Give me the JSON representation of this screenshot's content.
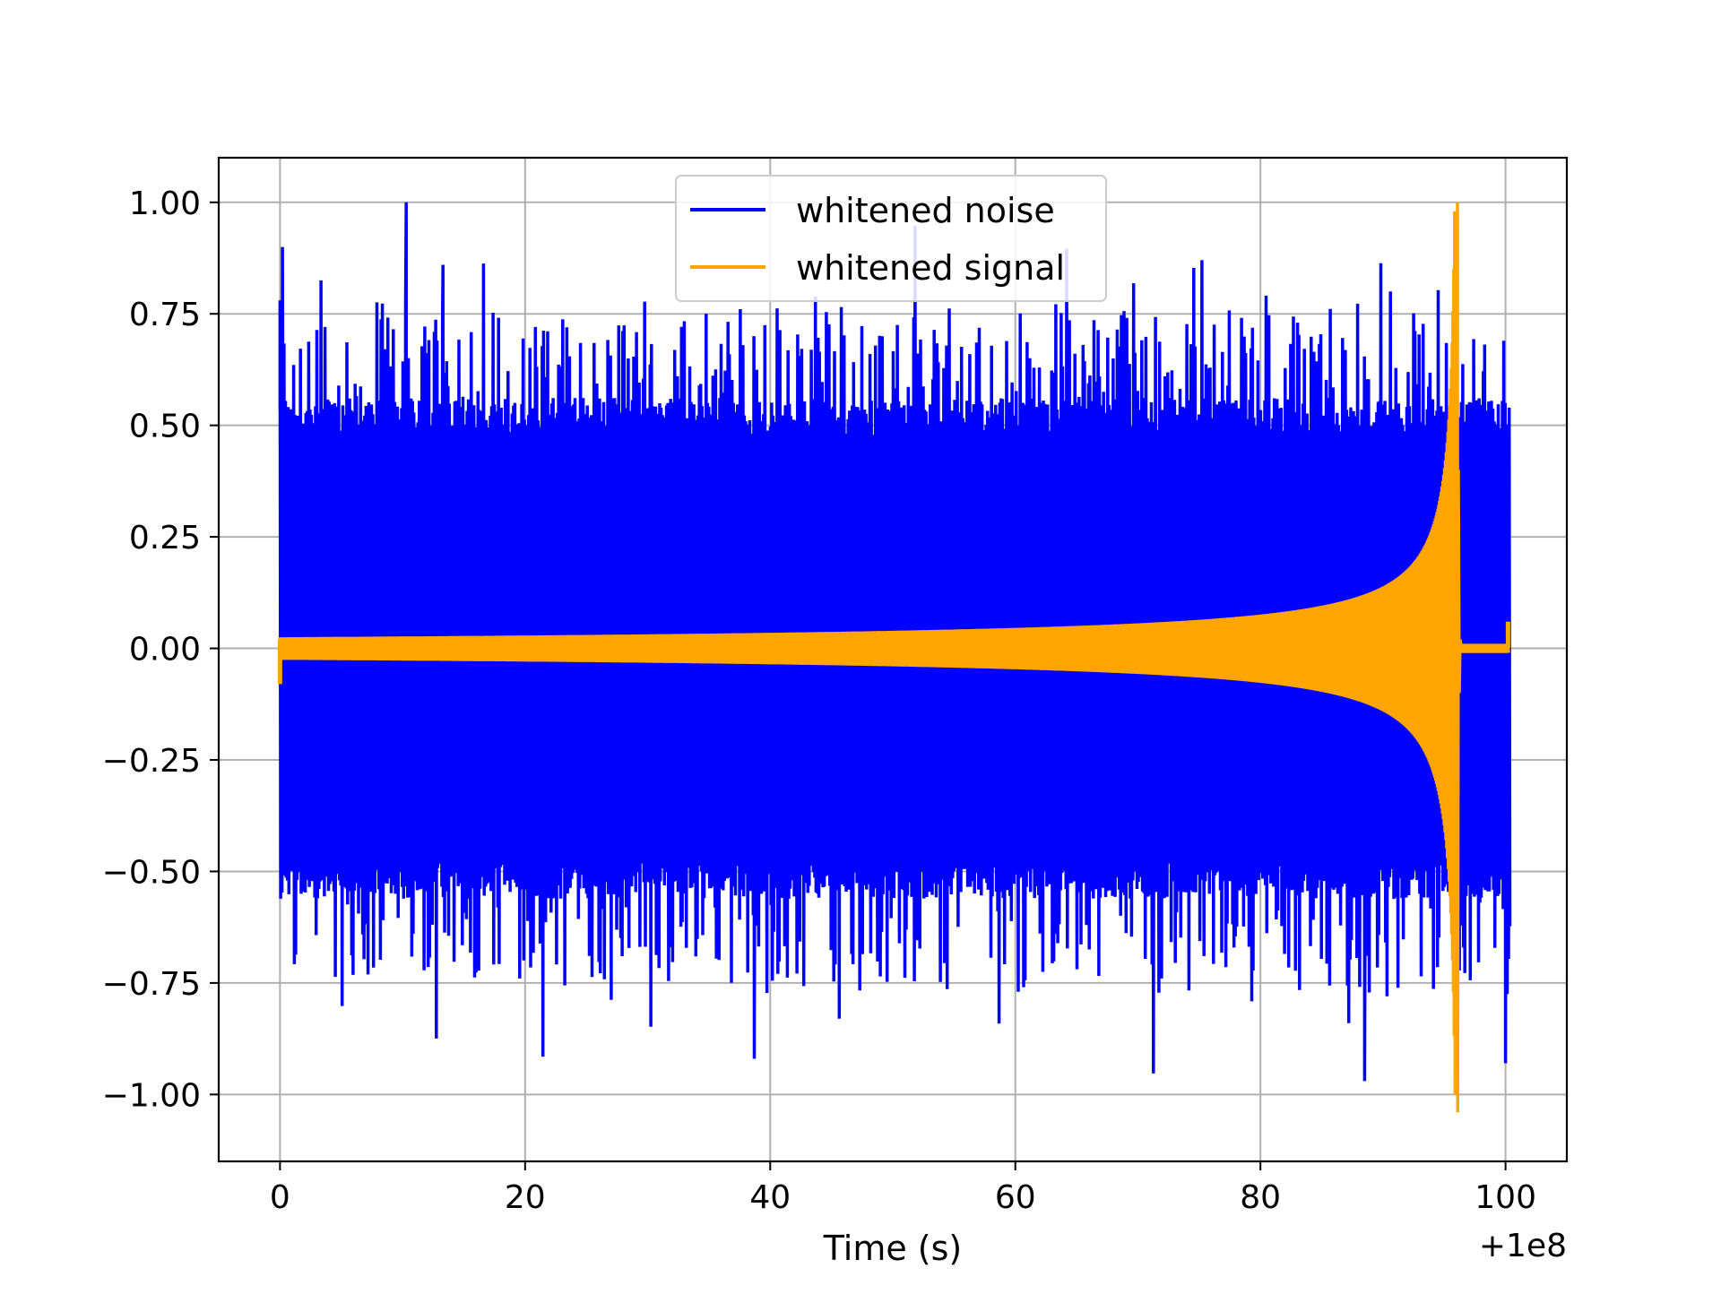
{
  "chart_data": {
    "type": "line",
    "title": "",
    "xlabel": "Time (s)",
    "ylabel": "",
    "x_offset_label": "+1e8",
    "xlim": [
      -5,
      105
    ],
    "ylim": [
      -1.15,
      1.1
    ],
    "grid": true,
    "legend_position": "top-center",
    "x_ticks": [
      0,
      20,
      40,
      60,
      80,
      100
    ],
    "x_tick_labels": [
      "0",
      "20",
      "40",
      "60",
      "80",
      "100"
    ],
    "y_ticks": [
      1.0,
      0.75,
      0.5,
      0.25,
      0.0,
      -0.25,
      -0.5,
      -0.75,
      -1.0
    ],
    "y_tick_labels": [
      "1.00",
      "0.75",
      "0.50",
      "0.25",
      "0.00",
      "−0.25",
      "−0.50",
      "−0.75",
      "−1.00"
    ],
    "series": [
      {
        "name": "whitened noise",
        "color": "#0000ff",
        "description_range": [
          0,
          100.3
        ],
        "x_range": [
          0,
          100.3
        ],
        "upper_envelope_typical": 0.52,
        "lower_envelope_typical": -0.52,
        "peaks": [
          {
            "x": 0.0,
            "y": 0.78
          },
          {
            "x": 0.2,
            "y": 0.9
          },
          {
            "x": 10.3,
            "y": 1.0
          },
          {
            "x": 13.3,
            "y": 0.86
          },
          {
            "x": 38.7,
            "y": -0.92
          },
          {
            "x": 88.5,
            "y": -0.97
          },
          {
            "x": 100.0,
            "y": -0.93
          }
        ]
      },
      {
        "name": "whitened signal",
        "color": "#ffa500",
        "x_range": [
          0,
          100.3
        ],
        "merger_time": 96.1,
        "start_amplitude": 0.025,
        "peak_max": 1.0,
        "peak_min": -1.04,
        "post_merger_amplitude": 0.01
      }
    ]
  }
}
